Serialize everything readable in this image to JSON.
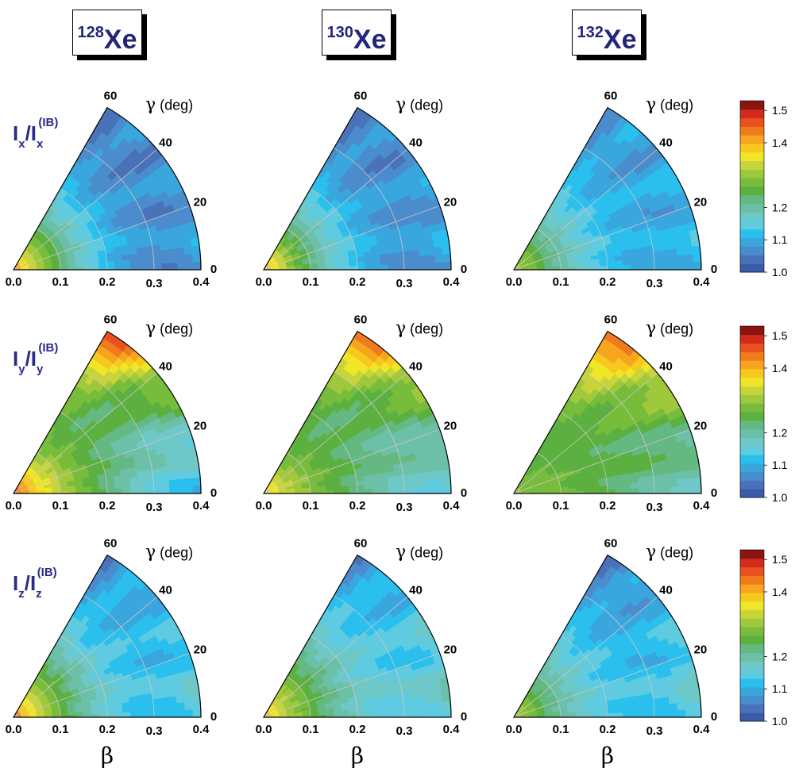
{
  "nuclei": [
    {
      "mass": "128",
      "symbol": "Xe"
    },
    {
      "mass": "130",
      "symbol": "Xe"
    },
    {
      "mass": "132",
      "symbol": "Xe"
    }
  ],
  "row_labels": [
    {
      "letter": "I",
      "sub": "x",
      "slash": "/I",
      "sup": "(IB)"
    },
    {
      "letter": "I",
      "sub": "y",
      "slash": "/I",
      "sup": "(IB)"
    },
    {
      "letter": "I",
      "sub": "z",
      "slash": "/I",
      "sup": "(IB)"
    }
  ],
  "chart_data": {
    "type": "contour",
    "panels_grid": {
      "rows": [
        "Ix/Ix(IB)",
        "Iy/Iy(IB)",
        "Iz/Iz(IB)"
      ],
      "cols": [
        "128Xe",
        "130Xe",
        "132Xe"
      ]
    },
    "axis": {
      "beta_label": "β",
      "gamma_label": "γ",
      "gamma_unit": "(deg)",
      "beta_ticks": [
        "0.0",
        "0.1",
        "0.2",
        "0.3",
        "0.4"
      ],
      "beta_range": [
        0.0,
        0.4
      ],
      "gamma_ticks": [
        "0",
        "20",
        "40",
        "60"
      ],
      "gamma_range": [
        0,
        60
      ]
    },
    "colorbar": {
      "ticks": [
        "1.0",
        "1.1",
        "1.2",
        "1.4",
        "1.5"
      ],
      "tick_values": [
        1.0,
        1.1,
        1.2,
        1.4,
        1.5
      ],
      "range": [
        1.0,
        1.53
      ],
      "colors": [
        "#3b5aa8",
        "#4a72b8",
        "#4a8ccc",
        "#3aa6de",
        "#2bbfee",
        "#5ecbe0",
        "#6ec8c8",
        "#6cc0a8",
        "#64b882",
        "#5cb040",
        "#78bc3c",
        "#a0c83c",
        "#c8d43c",
        "#f0e628",
        "#f7c91e",
        "#f7a51e",
        "#f07a1e",
        "#e8501e",
        "#d42a1e",
        "#8a1410"
      ]
    },
    "panels": [
      {
        "row": 0,
        "col": 0,
        "center": 1.43,
        "gamma60": 1.06,
        "corner": 1.09,
        "mid": 1.14
      },
      {
        "row": 0,
        "col": 1,
        "center": 1.41,
        "gamma60": 1.06,
        "corner": 1.1,
        "mid": 1.14
      },
      {
        "row": 0,
        "col": 2,
        "center": 1.33,
        "gamma60": 1.08,
        "corner": 1.12,
        "mid": 1.14
      },
      {
        "row": 1,
        "col": 0,
        "center": 1.45,
        "gamma60": 1.53,
        "corner": 1.12,
        "mid": 1.25
      },
      {
        "row": 1,
        "col": 1,
        "center": 1.38,
        "gamma60": 1.5,
        "corner": 1.16,
        "mid": 1.24
      },
      {
        "row": 1,
        "col": 2,
        "center": 1.3,
        "gamma60": 1.5,
        "corner": 1.18,
        "mid": 1.25
      },
      {
        "row": 2,
        "col": 0,
        "center": 1.45,
        "gamma60": 1.07,
        "corner": 1.16,
        "mid": 1.18
      },
      {
        "row": 2,
        "col": 1,
        "center": 1.41,
        "gamma60": 1.07,
        "corner": 1.18,
        "mid": 1.19
      },
      {
        "row": 2,
        "col": 2,
        "center": 1.33,
        "gamma60": 1.05,
        "corner": 1.17,
        "mid": 1.15
      }
    ]
  }
}
